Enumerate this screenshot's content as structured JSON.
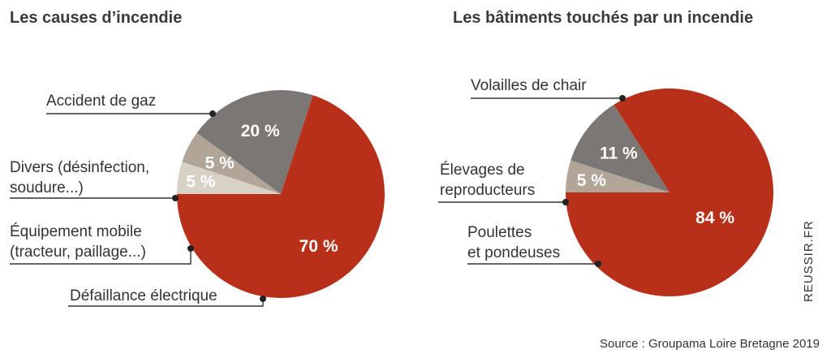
{
  "chart_data": [
    {
      "type": "pie",
      "title": "Les causes d’incendie",
      "unit": "%",
      "slices": [
        {
          "label": "Accident de gaz",
          "value": 70,
          "value_label": "70 %",
          "color": "#b8301a"
        },
        {
          "label": "Défaillance électrique",
          "value": 20,
          "value_label": "20 %",
          "color": "#7a7775"
        },
        {
          "label": "Équipement mobile (tracteur, paillage...)",
          "value": 5,
          "value_label": "5 %",
          "color": "#b0a596"
        },
        {
          "label": "Divers (désinfection, soudure...)",
          "value": 5,
          "value_label": "5 %",
          "color": "#d7d1c6"
        }
      ]
    },
    {
      "type": "pie",
      "title": "Les bâtiments touchés par un incendie",
      "unit": "%",
      "slices": [
        {
          "label": "Volailles de chair",
          "value": 84,
          "value_label": "84 %",
          "color": "#b8301a"
        },
        {
          "label": "Poulettes et pondeuses",
          "value": 11,
          "value_label": "11 %",
          "color": "#7a7775"
        },
        {
          "label": "Élevages de reproducteurs",
          "value": 5,
          "value_label": "5 %",
          "color": "#b0a596"
        }
      ]
    }
  ],
  "callouts": {
    "left": {
      "gas": [
        "Accident de gaz"
      ],
      "divers": [
        "Divers (désinfection,",
        "soudure...)"
      ],
      "mobile": [
        "Équipement mobile",
        "(tracteur, paillage...)"
      ],
      "electric": [
        "Défaillance électrique"
      ]
    },
    "right": {
      "broilers": [
        "Volailles de chair"
      ],
      "breeders": [
        "Élevages de",
        "reproducteurs"
      ],
      "layers": [
        "Poulettes",
        "et pondeuses"
      ]
    }
  },
  "footer": {
    "source": "Source : Groupama Loire Bretagne 2019",
    "brand": "REUSSIR.FR"
  }
}
